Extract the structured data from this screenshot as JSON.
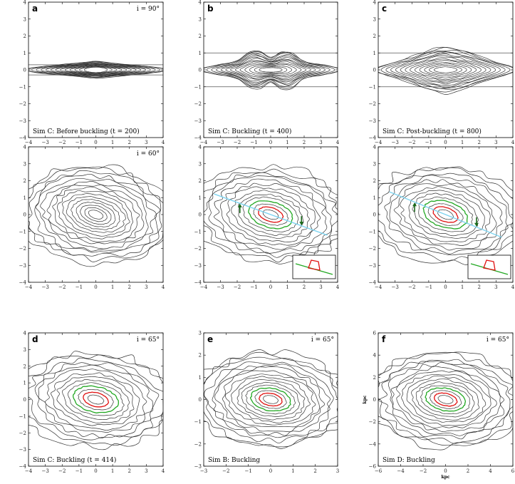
{
  "figure": {
    "panels": [
      {
        "id": "a",
        "letter": "a",
        "inclination": "i = 90°",
        "caption": "Sim C: Before buckling (t = 200)",
        "xticks": [
          "−4",
          "−3",
          "−2",
          "−1",
          "0",
          "1",
          "2",
          "3",
          "4"
        ],
        "yticks": [
          "4",
          "3",
          "2",
          "1",
          "0",
          "−1",
          "−2",
          "−3",
          "−4"
        ],
        "contours": {
          "type": "edge-on",
          "levels": 14,
          "thickness": 0.35,
          "bulge": 0.05,
          "hlines": [
            0.3,
            -0.3
          ]
        },
        "insets": null
      },
      {
        "id": "b",
        "letter": "b",
        "inclination": "",
        "caption": "Sim C: Buckling (t = 400)",
        "xticks": [
          "−4",
          "−3",
          "−2",
          "−1",
          "0",
          "1",
          "2",
          "3",
          "4"
        ],
        "yticks": [
          "4",
          "3",
          "2",
          "1",
          "0",
          "−1",
          "−2",
          "−3",
          "−4"
        ],
        "contours": {
          "type": "edge-on-peanut",
          "levels": 14,
          "thickness": 0.55,
          "bulge": 0.45,
          "hlines": [
            1,
            -1
          ]
        },
        "insets": null
      },
      {
        "id": "c",
        "letter": "c",
        "inclination": "",
        "caption": "Sim C: Post-buckling (t = 800)",
        "xticks": [
          "−4",
          "−3",
          "−2",
          "−1",
          "0",
          "1",
          "2",
          "3",
          "4"
        ],
        "yticks": [
          "4",
          "3",
          "2",
          "1",
          "0",
          "−1",
          "−2",
          "−3",
          "−4"
        ],
        "contours": {
          "type": "edge-on-box",
          "levels": 14,
          "thickness": 0.75,
          "bulge": 0.55,
          "hlines": [
            1,
            -1
          ]
        },
        "insets": null
      },
      {
        "id": "a2",
        "letter": "",
        "inclination": "i = 60°",
        "caption": "",
        "xticks": [
          "−4",
          "−3",
          "−2",
          "−1",
          "0",
          "1",
          "2",
          "3",
          "4"
        ],
        "yticks": [
          "4",
          "3",
          "2",
          "1",
          "0",
          "−1",
          "−2",
          "−3",
          "−4"
        ],
        "contours": {
          "type": "inclined",
          "levels": 16,
          "tilt": -20,
          "color_levels": false
        },
        "insets": null
      },
      {
        "id": "b2",
        "letter": "",
        "inclination": "",
        "caption": "",
        "xticks": [
          "−4",
          "−3",
          "−2",
          "−1",
          "0",
          "1",
          "2",
          "3",
          "4"
        ],
        "yticks": [
          "4",
          "3",
          "2",
          "1",
          "0",
          "−1",
          "−2",
          "−3",
          "−4"
        ],
        "contours": {
          "type": "inclined",
          "levels": 14,
          "tilt": -20,
          "color_levels": true
        },
        "insets": {
          "line": true,
          "arrows": true,
          "box": true
        }
      },
      {
        "id": "c2",
        "letter": "",
        "inclination": "",
        "caption": "",
        "xticks": [
          "−4",
          "−3",
          "−2",
          "−1",
          "0",
          "1",
          "2",
          "3",
          "4"
        ],
        "yticks": [
          "4",
          "3",
          "2",
          "1",
          "0",
          "−1",
          "−2",
          "−3",
          "−4"
        ],
        "contours": {
          "type": "inclined",
          "levels": 14,
          "tilt": -22,
          "color_levels": true
        },
        "insets": {
          "line": true,
          "arrows": true,
          "box": true
        }
      },
      {
        "id": "d",
        "letter": "d",
        "inclination": "i = 65°",
        "caption": "Sim C: Buckling (t = 414)",
        "xticks": [
          "−4",
          "−3",
          "−2",
          "−1",
          "0",
          "1",
          "2",
          "3",
          "4"
        ],
        "yticks": [
          "4",
          "3",
          "2",
          "1",
          "0",
          "−1",
          "−2",
          "−3",
          "−4"
        ],
        "contours": {
          "type": "inclined",
          "levels": 14,
          "tilt": -16,
          "color_levels": true
        },
        "insets": null
      },
      {
        "id": "e",
        "letter": "e",
        "inclination": "i = 65°",
        "caption": "Sim B: Buckling",
        "xticks": [
          "−3",
          "−2",
          "−1",
          "0",
          "1",
          "2",
          "3"
        ],
        "yticks": [
          "3",
          "2",
          "1",
          "0",
          "−1",
          "−2",
          "−3"
        ],
        "contours": {
          "type": "inclined",
          "levels": 16,
          "tilt": -12,
          "color_levels": true
        },
        "insets": null
      },
      {
        "id": "f",
        "letter": "f",
        "inclination": "i = 65°",
        "caption": "Sim D: Buckling",
        "xticks": [
          "−6",
          "−4",
          "−2",
          "0",
          "2",
          "4",
          "6"
        ],
        "yticks": [
          "6",
          "4",
          "2",
          "0",
          "−2",
          "−4",
          "−6"
        ],
        "xunit": "kpc",
        "yunit": "kpc",
        "contours": {
          "type": "inclined",
          "levels": 16,
          "tilt": -14,
          "color_levels": true
        },
        "insets": null
      }
    ],
    "colors": {
      "contour": "#333333",
      "green": "#22a822",
      "red": "#e01010",
      "blue": "#7fd4f0",
      "arrow": "#1a6a1a",
      "frame": "#000000"
    }
  }
}
